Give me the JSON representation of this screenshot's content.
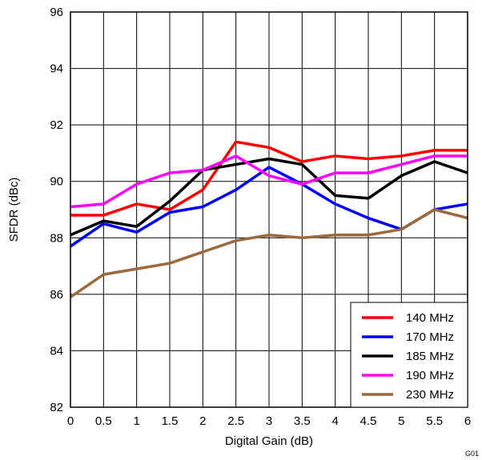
{
  "chart_data": {
    "type": "line",
    "title": "",
    "xlabel": "Digital Gain (dB)",
    "ylabel": "SFDR (dBc)",
    "x": [
      0,
      0.5,
      1,
      1.5,
      2,
      2.5,
      3,
      3.5,
      4,
      4.5,
      5,
      5.5,
      6
    ],
    "xlim": [
      0,
      6
    ],
    "ylim": [
      82,
      96
    ],
    "xticks": [
      "0",
      "0.5",
      "1",
      "1.5",
      "2",
      "2.5",
      "3",
      "3.5",
      "4",
      "4.5",
      "5",
      "5.5",
      "6"
    ],
    "yticks": [
      "82",
      "84",
      "86",
      "88",
      "90",
      "92",
      "94",
      "96"
    ],
    "grid": true,
    "legend_position": "bottom-right",
    "series": [
      {
        "name": "140 MHz",
        "color": "#ff0000",
        "values": [
          88.8,
          88.8,
          89.2,
          89.0,
          89.7,
          91.4,
          91.2,
          90.7,
          90.9,
          90.8,
          90.9,
          91.1,
          91.1
        ]
      },
      {
        "name": "170 MHz",
        "color": "#0000ff",
        "values": [
          87.7,
          88.5,
          88.2,
          88.9,
          89.1,
          89.7,
          90.5,
          89.9,
          89.2,
          88.7,
          88.3,
          89.0,
          89.2
        ]
      },
      {
        "name": "185 MHz",
        "color": "#000000",
        "values": [
          88.1,
          88.6,
          88.4,
          89.3,
          90.4,
          90.6,
          90.8,
          90.6,
          89.5,
          89.4,
          90.2,
          90.7,
          90.3
        ]
      },
      {
        "name": "190 MHz",
        "color": "#ff00ff",
        "values": [
          89.1,
          89.2,
          89.9,
          90.3,
          90.4,
          90.9,
          90.2,
          89.9,
          90.3,
          90.3,
          90.6,
          90.9,
          90.9
        ]
      },
      {
        "name": "230 MHz",
        "color": "#9b6a3c",
        "values": [
          85.9,
          86.7,
          86.9,
          87.1,
          87.5,
          87.9,
          88.1,
          88.0,
          88.1,
          88.1,
          88.3,
          89.0,
          88.7
        ]
      }
    ],
    "corner_code": "G01"
  }
}
